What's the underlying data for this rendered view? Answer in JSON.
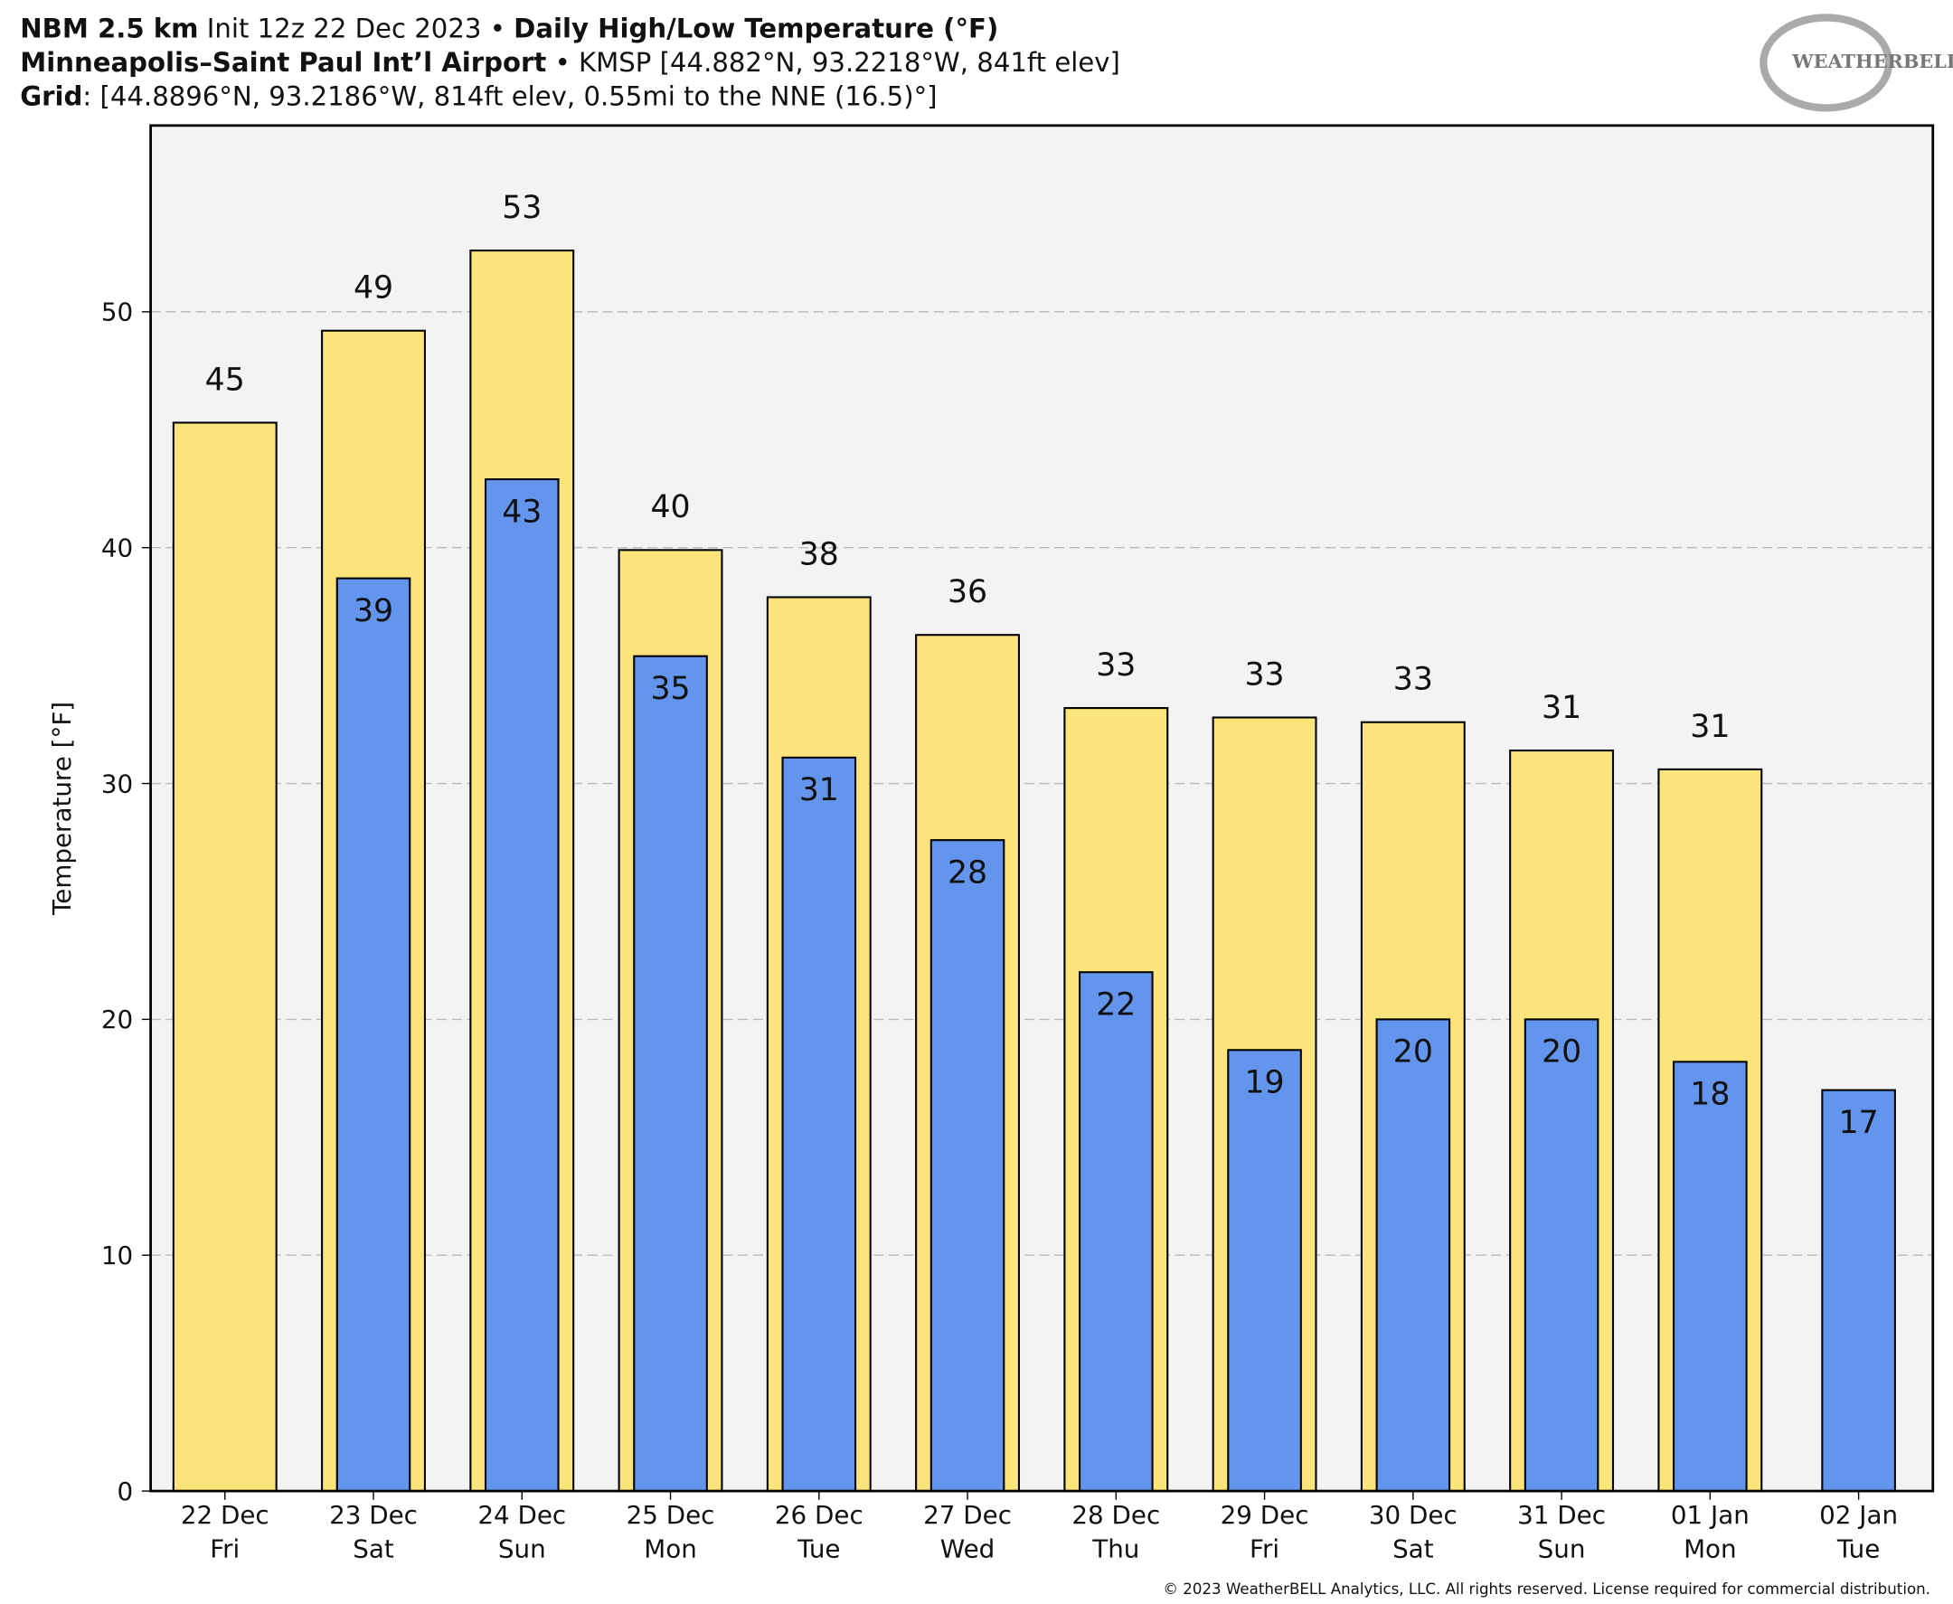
{
  "header": {
    "lines": [
      [
        {
          "text": "NBM 2.5 km",
          "bold": true
        },
        {
          "text": " Init 12z 22 Dec 2023 • ",
          "bold": false
        },
        {
          "text": "Daily High/Low Temperature (°F)",
          "bold": true
        }
      ],
      [
        {
          "text": "Minneapolis–Saint Paul Int’l Airport",
          "bold": true
        },
        {
          "text": " • KMSP [44.882°N, 93.2218°W, 841ft elev]",
          "bold": false
        }
      ],
      [
        {
          "text": "Grid",
          "bold": true
        },
        {
          "text": ": [44.8896°N, 93.2186°W, 814ft elev, 0.55mi to the NNE (16.5)°]",
          "bold": false
        }
      ]
    ],
    "logo": "WEATHERBELL"
  },
  "chart_data": {
    "type": "bar",
    "y_label": "Temperature [°F]",
    "categories": [
      [
        "22 Dec",
        "Fri"
      ],
      [
        "23 Dec",
        "Sat"
      ],
      [
        "24 Dec",
        "Sun"
      ],
      [
        "25 Dec",
        "Mon"
      ],
      [
        "26 Dec",
        "Tue"
      ],
      [
        "27 Dec",
        "Wed"
      ],
      [
        "28 Dec",
        "Thu"
      ],
      [
        "29 Dec",
        "Fri"
      ],
      [
        "30 Dec",
        "Sat"
      ],
      [
        "31 Dec",
        "Sun"
      ],
      [
        "01 Jan",
        "Mon"
      ],
      [
        "02 Jan",
        "Tue"
      ]
    ],
    "series": [
      {
        "color": "#fce47c",
        "values": [
          45.3,
          49.2,
          52.6,
          39.9,
          37.9,
          36.3,
          33.2,
          32.8,
          32.6,
          31.4,
          30.6,
          null
        ],
        "value_labels": [
          "45",
          "49",
          "53",
          "40",
          "38",
          "36",
          "33",
          "33",
          "33",
          "31",
          "31",
          null
        ]
      },
      {
        "color": "#6495ed",
        "values": [
          null,
          38.7,
          42.9,
          35.4,
          31.1,
          27.6,
          22.0,
          18.7,
          20.0,
          20.0,
          18.2,
          17.0
        ],
        "value_labels": [
          null,
          "39",
          "43",
          "35",
          "31",
          "28",
          "22",
          "19",
          "20",
          "20",
          "18",
          "17"
        ]
      }
    ],
    "ylim": [
      0,
      57.9
    ],
    "yticks": [
      0,
      10,
      20,
      30,
      40,
      50
    ],
    "grid": true
  },
  "footer": "© 2023 WeatherBELL Analytics, LLC. All rights reserved. License required for commercial distribution."
}
